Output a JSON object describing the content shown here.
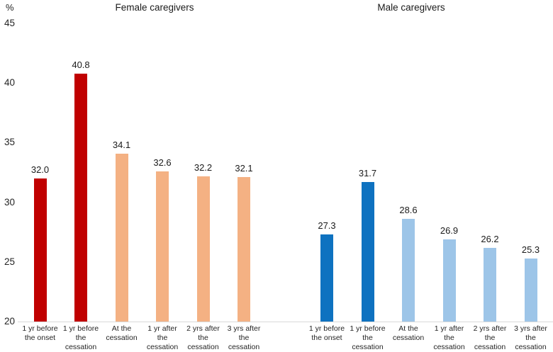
{
  "chart_data": {
    "type": "bar",
    "unit": "%",
    "ylim": [
      20,
      45
    ],
    "yticks": [
      45,
      40,
      35,
      30,
      25,
      20
    ],
    "grid": false,
    "legend": "none",
    "value_labels": true,
    "value_label_format": "one-decimal",
    "groups": [
      {
        "title": "Female caregivers",
        "colors": {
          "highlight": "#c00000",
          "base": "#f4b183"
        },
        "highlight_count": 2,
        "categories": [
          "1 yr before\nthe onset",
          "1 yr before\nthe\ncessation",
          "At the\ncessation",
          "1 yr after\nthe\ncessation",
          "2 yrs after\nthe\ncessation",
          "3 yrs after\nthe\ncessation"
        ],
        "values": [
          32.0,
          40.8,
          34.1,
          32.6,
          32.2,
          32.1
        ]
      },
      {
        "title": "Male caregivers",
        "colors": {
          "highlight": "#0e72c0",
          "base": "#9dc5e8"
        },
        "highlight_count": 2,
        "categories": [
          "1 yr before\nthe onset",
          "1 yr before\nthe\ncessation",
          "At the\ncessation",
          "1 yr after\nthe\ncessation",
          "2 yrs after\nthe\ncessation",
          "3 yrs after\nthe\ncessation"
        ],
        "values": [
          27.3,
          31.7,
          28.6,
          26.9,
          26.2,
          25.3
        ]
      }
    ]
  }
}
